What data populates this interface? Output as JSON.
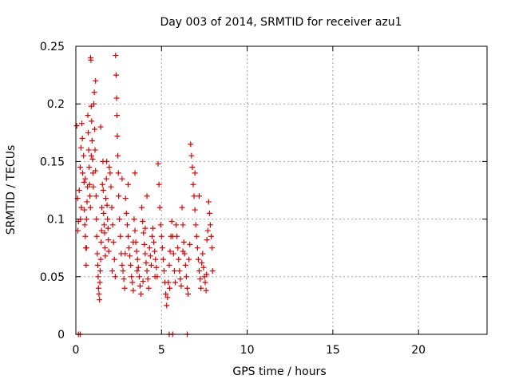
{
  "chart_data": {
    "type": "scatter",
    "title": "Day 003 of 2014, SRMTID for receiver azu1",
    "xlabel": "GPS time / hours",
    "ylabel": "SRMTID / TECUs",
    "xlim": [
      0,
      24
    ],
    "ylim": [
      0,
      0.25
    ],
    "x_ticks": [
      0,
      5,
      10,
      15,
      20
    ],
    "x_tick_labels": [
      "0",
      "5",
      "10",
      "15",
      "20"
    ],
    "y_ticks": [
      0,
      0.05,
      0.1,
      0.15,
      0.2,
      0.25
    ],
    "y_tick_labels": [
      "0",
      "0.05",
      "0.1",
      "0.15",
      "0.2",
      "0.25"
    ],
    "grid": true,
    "marker": "+",
    "color": "#dd0000",
    "series": [
      {
        "name": "SRMTID",
        "points": [
          [
            0.05,
            0.181
          ],
          [
            0.1,
            0.118
          ],
          [
            0.12,
            0.09
          ],
          [
            0.2,
            0.125
          ],
          [
            0.25,
            0.145
          ],
          [
            0.3,
            0.162
          ],
          [
            0.35,
            0.183
          ],
          [
            0.38,
            0.17
          ],
          [
            0.4,
            0.14
          ],
          [
            0.45,
            0.155
          ],
          [
            0.48,
            0.132
          ],
          [
            0.5,
            0.108
          ],
          [
            0.52,
            0.095
          ],
          [
            0.55,
            0.085
          ],
          [
            0.58,
            0.075
          ],
          [
            0.6,
            0.06
          ],
          [
            0.62,
            0.1
          ],
          [
            0.65,
            0.115
          ],
          [
            0.68,
            0.128
          ],
          [
            0.7,
            0.19
          ],
          [
            0.72,
            0.175
          ],
          [
            0.75,
            0.16
          ],
          [
            0.78,
            0.145
          ],
          [
            0.8,
            0.13
          ],
          [
            0.82,
            0.12
          ],
          [
            0.85,
            0.11
          ],
          [
            0.86,
            0.24
          ],
          [
            0.88,
            0.238
          ],
          [
            0.9,
            0.198
          ],
          [
            0.92,
            0.185
          ],
          [
            0.95,
            0.168
          ],
          [
            0.98,
            0.152
          ],
          [
            1.0,
            0.14
          ],
          [
            1.02,
            0.128
          ],
          [
            1.05,
            0.2
          ],
          [
            1.08,
            0.21
          ],
          [
            1.1,
            0.178
          ],
          [
            1.12,
            0.16
          ],
          [
            1.15,
            0.142
          ],
          [
            1.18,
            0.12
          ],
          [
            1.2,
            0.1
          ],
          [
            1.22,
            0.085
          ],
          [
            1.25,
            0.07
          ],
          [
            1.28,
            0.06
          ],
          [
            1.3,
            0.05
          ],
          [
            1.32,
            0.04
          ],
          [
            1.35,
            0.035
          ],
          [
            1.38,
            0.03
          ],
          [
            1.4,
            0.045
          ],
          [
            1.42,
            0.055
          ],
          [
            1.45,
            0.065
          ],
          [
            1.48,
            0.08
          ],
          [
            1.5,
            0.09
          ],
          [
            1.52,
            0.11
          ],
          [
            1.55,
            0.13
          ],
          [
            1.58,
            0.15
          ],
          [
            1.6,
            0.125
          ],
          [
            1.62,
            0.105
          ],
          [
            1.65,
            0.095
          ],
          [
            1.68,
            0.088
          ],
          [
            1.7,
            0.075
          ],
          [
            1.72,
            0.068
          ],
          [
            1.75,
            0.118
          ],
          [
            1.78,
            0.135
          ],
          [
            1.8,
            0.15
          ],
          [
            1.82,
            0.112
          ],
          [
            1.85,
            0.1
          ],
          [
            1.88,
            0.092
          ],
          [
            1.9,
            0.082
          ],
          [
            1.92,
            0.072
          ],
          [
            2.0,
            0.14
          ],
          [
            2.05,
            0.128
          ],
          [
            2.1,
            0.11
          ],
          [
            2.15,
            0.095
          ],
          [
            2.2,
            0.08
          ],
          [
            2.25,
            0.065
          ],
          [
            2.3,
            0.05
          ],
          [
            2.32,
            0.242
          ],
          [
            2.35,
            0.225
          ],
          [
            2.38,
            0.205
          ],
          [
            2.4,
            0.19
          ],
          [
            2.42,
            0.172
          ],
          [
            2.45,
            0.155
          ],
          [
            2.48,
            0.14
          ],
          [
            2.5,
            0.12
          ],
          [
            2.55,
            0.1
          ],
          [
            2.6,
            0.085
          ],
          [
            2.65,
            0.07
          ],
          [
            2.7,
            0.06
          ],
          [
            2.75,
            0.055
          ],
          [
            2.8,
            0.048
          ],
          [
            2.85,
            0.04
          ],
          [
            2.9,
            0.118
          ],
          [
            2.95,
            0.105
          ],
          [
            3.0,
            0.095
          ],
          [
            3.05,
            0.085
          ],
          [
            3.1,
            0.075
          ],
          [
            3.15,
            0.068
          ],
          [
            3.2,
            0.06
          ],
          [
            3.25,
            0.05
          ],
          [
            3.3,
            0.045
          ],
          [
            3.35,
            0.038
          ],
          [
            3.4,
            0.1
          ],
          [
            3.45,
            0.09
          ],
          [
            3.5,
            0.08
          ],
          [
            3.55,
            0.072
          ],
          [
            3.6,
            0.065
          ],
          [
            3.65,
            0.058
          ],
          [
            3.7,
            0.05
          ],
          [
            3.75,
            0.042
          ],
          [
            3.8,
            0.035
          ],
          [
            3.85,
            0.11
          ],
          [
            3.9,
            0.098
          ],
          [
            3.95,
            0.088
          ],
          [
            4.0,
            0.078
          ],
          [
            4.05,
            0.07
          ],
          [
            4.1,
            0.062
          ],
          [
            4.15,
            0.055
          ],
          [
            4.2,
            0.048
          ],
          [
            4.25,
            0.04
          ],
          [
            4.3,
            0.075
          ],
          [
            4.35,
            0.068
          ],
          [
            4.4,
            0.06
          ],
          [
            4.45,
            0.085
          ],
          [
            4.5,
            0.092
          ],
          [
            4.55,
            0.08
          ],
          [
            4.6,
            0.072
          ],
          [
            4.65,
            0.065
          ],
          [
            4.7,
            0.058
          ],
          [
            4.75,
            0.05
          ],
          [
            4.8,
            0.148
          ],
          [
            4.85,
            0.13
          ],
          [
            4.9,
            0.11
          ],
          [
            4.95,
            0.095
          ],
          [
            5.0,
            0.085
          ],
          [
            5.05,
            0.075
          ],
          [
            5.1,
            0.065
          ],
          [
            5.15,
            0.055
          ],
          [
            5.2,
            0.045
          ],
          [
            5.25,
            0.035
          ],
          [
            5.3,
            0.025
          ],
          [
            5.35,
            0.032
          ],
          [
            5.4,
            0.045
          ],
          [
            5.45,
            0.06
          ],
          [
            5.5,
            0.072
          ],
          [
            5.55,
            0.085
          ],
          [
            5.6,
            0.098
          ],
          [
            5.65,
            0.085
          ],
          [
            5.7,
            0.07
          ],
          [
            5.75,
            0.055
          ],
          [
            5.8,
            0.045
          ],
          [
            5.85,
            0.095
          ],
          [
            5.9,
            0.085
          ],
          [
            5.95,
            0.075
          ],
          [
            6.0,
            0.065
          ],
          [
            6.05,
            0.055
          ],
          [
            6.1,
            0.048
          ],
          [
            6.15,
            0.042
          ],
          [
            6.2,
            0.11
          ],
          [
            6.25,
            0.095
          ],
          [
            6.3,
            0.08
          ],
          [
            6.35,
            0.07
          ],
          [
            6.4,
            0.06
          ],
          [
            6.45,
            0.05
          ],
          [
            6.5,
            0.04
          ],
          [
            6.55,
            0.035
          ],
          [
            6.6,
            0.065
          ],
          [
            6.65,
            0.078
          ],
          [
            6.7,
            0.165
          ],
          [
            6.75,
            0.155
          ],
          [
            6.8,
            0.145
          ],
          [
            6.85,
            0.13
          ],
          [
            6.9,
            0.12
          ],
          [
            6.95,
            0.108
          ],
          [
            7.0,
            0.095
          ],
          [
            7.05,
            0.085
          ],
          [
            7.1,
            0.075
          ],
          [
            7.15,
            0.065
          ],
          [
            7.2,
            0.055
          ],
          [
            7.25,
            0.048
          ],
          [
            7.3,
            0.04
          ],
          [
            7.35,
            0.062
          ],
          [
            7.4,
            0.07
          ],
          [
            7.45,
            0.058
          ],
          [
            7.5,
            0.05
          ],
          [
            7.55,
            0.045
          ],
          [
            7.6,
            0.038
          ],
          [
            7.65,
            0.082
          ],
          [
            7.7,
            0.09
          ],
          [
            7.75,
            0.115
          ],
          [
            7.8,
            0.105
          ],
          [
            7.85,
            0.095
          ],
          [
            7.9,
            0.085
          ],
          [
            7.95,
            0.075
          ],
          [
            7.98,
            0.055
          ],
          [
            1.15,
            0.22
          ],
          [
            0.32,
            0.11
          ],
          [
            0.15,
            0.098
          ],
          [
            3.05,
            0.13
          ],
          [
            3.45,
            0.14
          ],
          [
            4.15,
            0.12
          ],
          [
            2.7,
            0.135
          ],
          [
            1.95,
            0.145
          ],
          [
            6.95,
            0.14
          ],
          [
            7.2,
            0.12
          ],
          [
            0.62,
            0.075
          ],
          [
            0.27,
            0.1
          ],
          [
            0.55,
            0.135
          ],
          [
            1.45,
            0.18
          ],
          [
            0.9,
            0.155
          ],
          [
            3.58,
            0.055
          ],
          [
            3.92,
            0.046
          ],
          [
            4.62,
            0.05
          ],
          [
            5.48,
            0.04
          ],
          [
            6.25,
            0.072
          ],
          [
            7.63,
            0.052
          ],
          [
            2.12,
            0.055
          ],
          [
            2.88,
            0.07
          ],
          [
            3.35,
            0.08
          ],
          [
            4.05,
            0.092
          ]
        ]
      }
    ],
    "zero_markers_x": [
      0.15,
      0.25,
      5.45,
      5.65,
      6.5
    ]
  }
}
